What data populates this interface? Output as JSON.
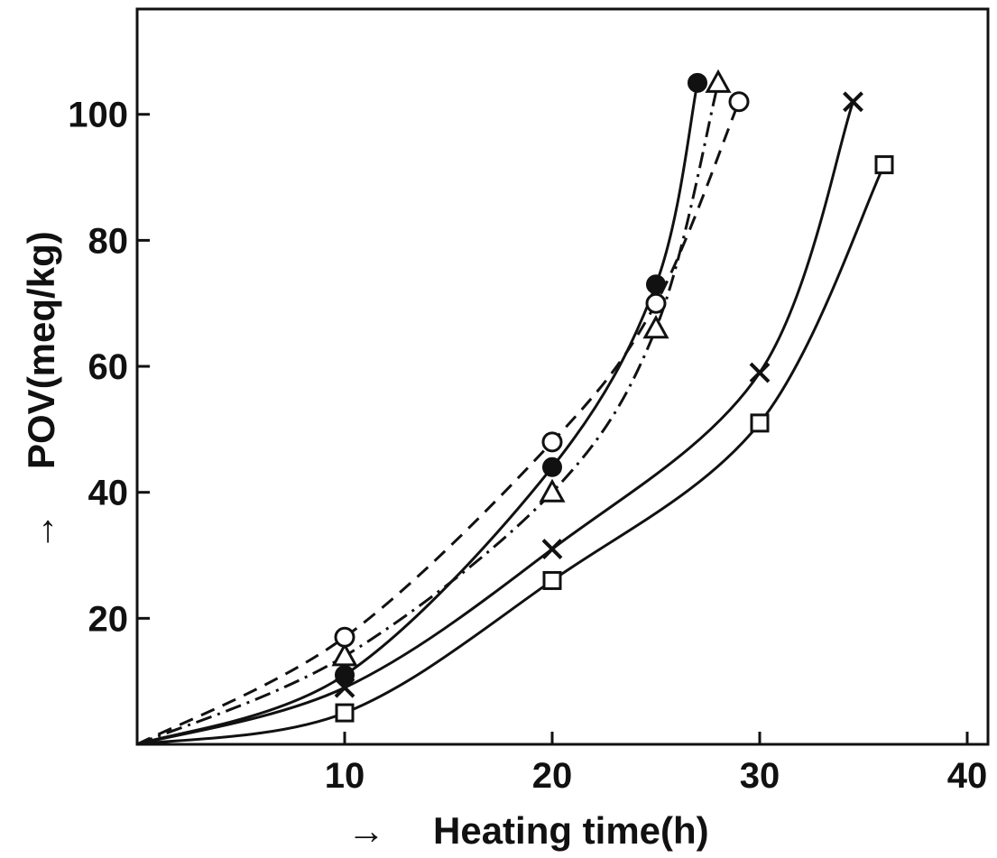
{
  "chart_data": {
    "type": "line",
    "xlabel": "Heating time(h)",
    "ylabel": "POV(meq/kg)",
    "xlim": [
      0,
      40
    ],
    "ylim": [
      0,
      115
    ],
    "x_ticks": [
      10,
      20,
      30,
      40
    ],
    "y_ticks": [
      20,
      40,
      60,
      80,
      100
    ],
    "grid": false,
    "legend": "none",
    "series": [
      {
        "marker": "filled-circle",
        "line": "solid",
        "x": [
          0,
          10,
          20,
          25,
          27
        ],
        "y": [
          0,
          11,
          44,
          73,
          105
        ]
      },
      {
        "marker": "open-triangle",
        "line": "dash-dot",
        "x": [
          0,
          10,
          20,
          25,
          28
        ],
        "y": [
          0,
          14,
          40,
          66,
          105
        ]
      },
      {
        "marker": "open-circle",
        "line": "dashed",
        "x": [
          0,
          10,
          20,
          25,
          29
        ],
        "y": [
          0,
          17,
          48,
          70,
          102
        ]
      },
      {
        "marker": "cross",
        "line": "solid",
        "x": [
          0,
          10,
          20,
          30,
          34.5
        ],
        "y": [
          0,
          9,
          31,
          59,
          102
        ]
      },
      {
        "marker": "open-square",
        "line": "solid",
        "x": [
          0,
          10,
          20,
          30,
          36
        ],
        "y": [
          0,
          5,
          26,
          51,
          92
        ]
      }
    ]
  }
}
